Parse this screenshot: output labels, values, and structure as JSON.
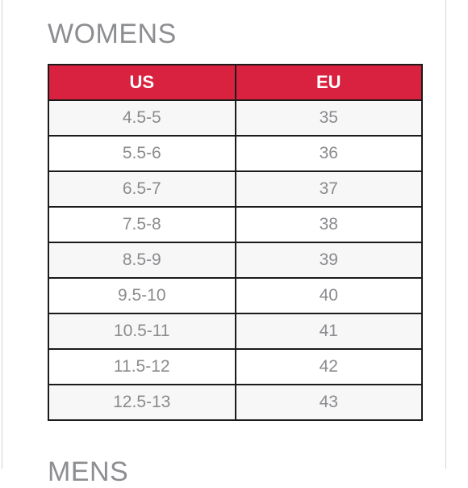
{
  "section": {
    "title": "WOMENS",
    "next_title": "MENS"
  },
  "table": {
    "headers": [
      "US",
      "EU"
    ],
    "rows": [
      [
        "4.5-5",
        "35"
      ],
      [
        "5.5-6",
        "36"
      ],
      [
        "6.5-7",
        "37"
      ],
      [
        "7.5-8",
        "38"
      ],
      [
        "8.5-9",
        "39"
      ],
      [
        "9.5-10",
        "40"
      ],
      [
        "10.5-11",
        "41"
      ],
      [
        "11.5-12",
        "42"
      ],
      [
        "12.5-13",
        "43"
      ]
    ]
  },
  "colors": {
    "header_bg": "#d9223f",
    "header_text": "#ffffff",
    "cell_text": "#8a8b8e",
    "title_text": "#8d8e91",
    "border": "#1b1b1b"
  }
}
